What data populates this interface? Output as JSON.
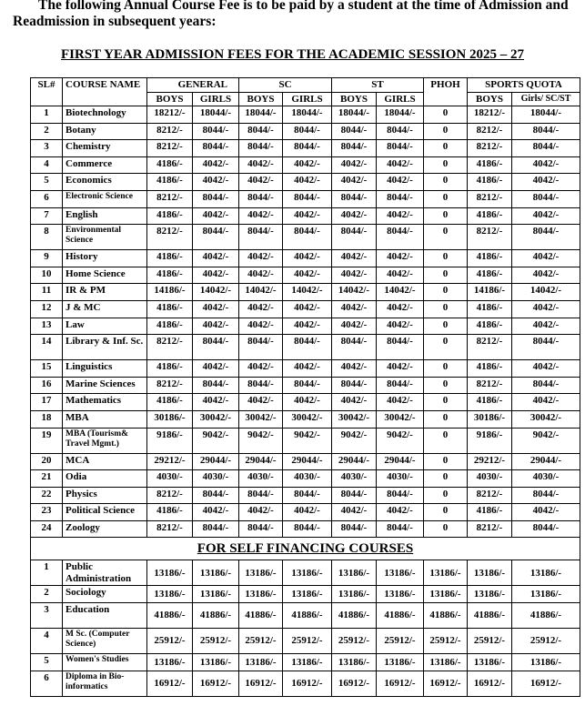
{
  "intro": "The following Annual Course Fee is to be paid by a student at the time of Admission and Readmission in subsequent years:",
  "title": "FIRST YEAR ADMISSION FEES FOR THE ACADEMIC SESSION 2025 – 27",
  "headers": {
    "sl": "SL#",
    "course": "COURSE NAME",
    "general": "GENERAL",
    "sc": "SC",
    "st": "ST",
    "phoh": "PHOH",
    "sports": "SPORTS QUOTA",
    "boys": "BOYS",
    "girls": "GIRLS",
    "sports_girls": "Girls/ SC/ST"
  },
  "rows": [
    {
      "sl": "1",
      "name": "Biotechnology",
      "fees": [
        "18212/-",
        "18044/-",
        "18044/-",
        "18044/-",
        "18044/-",
        "18044/-",
        "0",
        "18212/-",
        "18044/-"
      ]
    },
    {
      "sl": "2",
      "name": "Botany",
      "fees": [
        "8212/-",
        "8044/-",
        "8044/-",
        "8044/-",
        "8044/-",
        "8044/-",
        "0",
        "8212/-",
        "8044/-"
      ]
    },
    {
      "sl": "3",
      "name": "Chemistry",
      "fees": [
        "8212/-",
        "8044/-",
        "8044/-",
        "8044/-",
        "8044/-",
        "8044/-",
        "0",
        "8212/-",
        "8044/-"
      ]
    },
    {
      "sl": "4",
      "name": "Commerce",
      "fees": [
        "4186/-",
        "4042/-",
        "4042/-",
        "4042/-",
        "4042/-",
        "4042/-",
        "0",
        "4186/-",
        "4042/-"
      ]
    },
    {
      "sl": "5",
      "name": "Economics",
      "fees": [
        "4186/-",
        "4042/-",
        "4042/-",
        "4042/-",
        "4042/-",
        "4042/-",
        "0",
        "4186/-",
        "4042/-"
      ]
    },
    {
      "sl": "6",
      "name": "Electronic Science",
      "small": true,
      "fees": [
        "8212/-",
        "8044/-",
        "8044/-",
        "8044/-",
        "8044/-",
        "8044/-",
        "0",
        "8212/-",
        "8044/-"
      ]
    },
    {
      "sl": "7",
      "name": "English",
      "fees": [
        "4186/-",
        "4042/-",
        "4042/-",
        "4042/-",
        "4042/-",
        "4042/-",
        "0",
        "4186/-",
        "4042/-"
      ]
    },
    {
      "sl": "8",
      "name": "Environmental Science",
      "small": true,
      "tall": true,
      "fees": [
        "8212/-",
        "8044/-",
        "8044/-",
        "8044/-",
        "8044/-",
        "8044/-",
        "0",
        "8212/-",
        "8044/-"
      ]
    },
    {
      "sl": "9",
      "name": "History",
      "fees": [
        "4186/-",
        "4042/-",
        "4042/-",
        "4042/-",
        "4042/-",
        "4042/-",
        "0",
        "4186/-",
        "4042/-"
      ]
    },
    {
      "sl": "10",
      "name": "Home Science",
      "fees": [
        "4186/-",
        "4042/-",
        "4042/-",
        "4042/-",
        "4042/-",
        "4042/-",
        "0",
        "4186/-",
        "4042/-"
      ]
    },
    {
      "sl": "11",
      "name": "IR & PM",
      "fees": [
        "14186/-",
        "14042/-",
        "14042/-",
        "14042/-",
        "14042/-",
        "14042/-",
        "0",
        "14186/-",
        "14042/-"
      ]
    },
    {
      "sl": "12",
      "name": "J & MC",
      "fees": [
        "4186/-",
        "4042/-",
        "4042/-",
        "4042/-",
        "4042/-",
        "4042/-",
        "0",
        "4186/-",
        "4042/-"
      ]
    },
    {
      "sl": "13",
      "name": "Law",
      "fees": [
        "4186/-",
        "4042/-",
        "4042/-",
        "4042/-",
        "4042/-",
        "4042/-",
        "0",
        "4186/-",
        "4042/-"
      ]
    },
    {
      "sl": "14",
      "name": "Library & Inf. Sc.",
      "tall": true,
      "fees": [
        "8212/-",
        "8044/-",
        "8044/-",
        "8044/-",
        "8044/-",
        "8044/-",
        "0",
        "8212/-",
        "8044/-"
      ]
    },
    {
      "sl": "15",
      "name": "Linguistics",
      "fees": [
        "4186/-",
        "4042/-",
        "4042/-",
        "4042/-",
        "4042/-",
        "4042/-",
        "0",
        "4186/-",
        "4042/-"
      ]
    },
    {
      "sl": "16",
      "name": "Marine Sciences",
      "fees": [
        "8212/-",
        "8044/-",
        "8044/-",
        "8044/-",
        "8044/-",
        "8044/-",
        "0",
        "8212/-",
        "8044/-"
      ]
    },
    {
      "sl": "17",
      "name": "Mathematics",
      "fees": [
        "4186/-",
        "4042/-",
        "4042/-",
        "4042/-",
        "4042/-",
        "4042/-",
        "0",
        "4186/-",
        "4042/-"
      ]
    },
    {
      "sl": "18",
      "name": "MBA",
      "fees": [
        "30186/-",
        "30042/-",
        "30042/-",
        "30042/-",
        "30042/-",
        "30042/-",
        "0",
        "30186/-",
        "30042/-"
      ]
    },
    {
      "sl": "19",
      "name": "MBA (Tourism& Travel Mgmt.)",
      "small": true,
      "tall": true,
      "fees": [
        "9186/-",
        "9042/-",
        "9042/-",
        "9042/-",
        "9042/-",
        "9042/-",
        "0",
        "9186/-",
        "9042/-"
      ]
    },
    {
      "sl": "20",
      "name": "MCA",
      "fees": [
        "29212/-",
        "29044/-",
        "29044/-",
        "29044/-",
        "29044/-",
        "29044/-",
        "0",
        "29212/-",
        "29044/-"
      ]
    },
    {
      "sl": "21",
      "name": "Odia",
      "fees": [
        "4030/-",
        "4030/-",
        "4030/-",
        "4030/-",
        "4030/-",
        "4030/-",
        "0",
        "4030/-",
        "4030/-"
      ]
    },
    {
      "sl": "22",
      "name": "Physics",
      "fees": [
        "8212/-",
        "8044/-",
        "8044/-",
        "8044/-",
        "8044/-",
        "8044/-",
        "0",
        "8212/-",
        "8044/-"
      ]
    },
    {
      "sl": "23",
      "name": "Political Science",
      "fees": [
        "4186/-",
        "4042/-",
        "4042/-",
        "4042/-",
        "4042/-",
        "4042/-",
        "0",
        "4186/-",
        "4042/-"
      ]
    },
    {
      "sl": "24",
      "name": "Zoology",
      "fees": [
        "8212/-",
        "8044/-",
        "8044/-",
        "8044/-",
        "8044/-",
        "8044/-",
        "0",
        "8212/-",
        "8044/-"
      ]
    }
  ],
  "self_financing": {
    "title": "FOR SELF FINANCING COURSES",
    "rows": [
      {
        "sl": "1",
        "name": "Public Administration",
        "tall": true,
        "fees": [
          "13186/-",
          "13186/-",
          "13186/-",
          "13186/-",
          "13186/-",
          "13186/-",
          "13186/-",
          "13186/-",
          "13186/-"
        ]
      },
      {
        "sl": "2",
        "name": "Sociology",
        "fees": [
          "13186/-",
          "13186/-",
          "13186/-",
          "13186/-",
          "13186/-",
          "13186/-",
          "13186/-",
          "13186/-",
          "13186/-"
        ]
      },
      {
        "sl": "3",
        "name": "Education",
        "tall": true,
        "fees": [
          "41886/-",
          "41886/-",
          "41886/-",
          "41886/-",
          "41886/-",
          "41886/-",
          "41886/-",
          "41886/-",
          "41886/-"
        ]
      },
      {
        "sl": "4",
        "name": "M Sc. (Computer Science)",
        "small": true,
        "tall": true,
        "fees": [
          "25912/-",
          "25912/-",
          "25912/-",
          "25912/-",
          "25912/-",
          "25912/-",
          "25912/-",
          "25912/-",
          "25912/-"
        ]
      },
      {
        "sl": "5",
        "name": "Women's Studies",
        "small": true,
        "fees": [
          "13186/-",
          "13186/-",
          "13186/-",
          "13186/-",
          "13186/-",
          "13186/-",
          "13186/-",
          "13186/-",
          "13186/-"
        ]
      },
      {
        "sl": "6",
        "name": "Diploma in Bio-informatics",
        "small": true,
        "tall": true,
        "fees": [
          "16912/-",
          "16912/-",
          "16912/-",
          "16912/-",
          "16912/-",
          "16912/-",
          "16912/-",
          "16912/-",
          "16912/-"
        ]
      }
    ]
  }
}
